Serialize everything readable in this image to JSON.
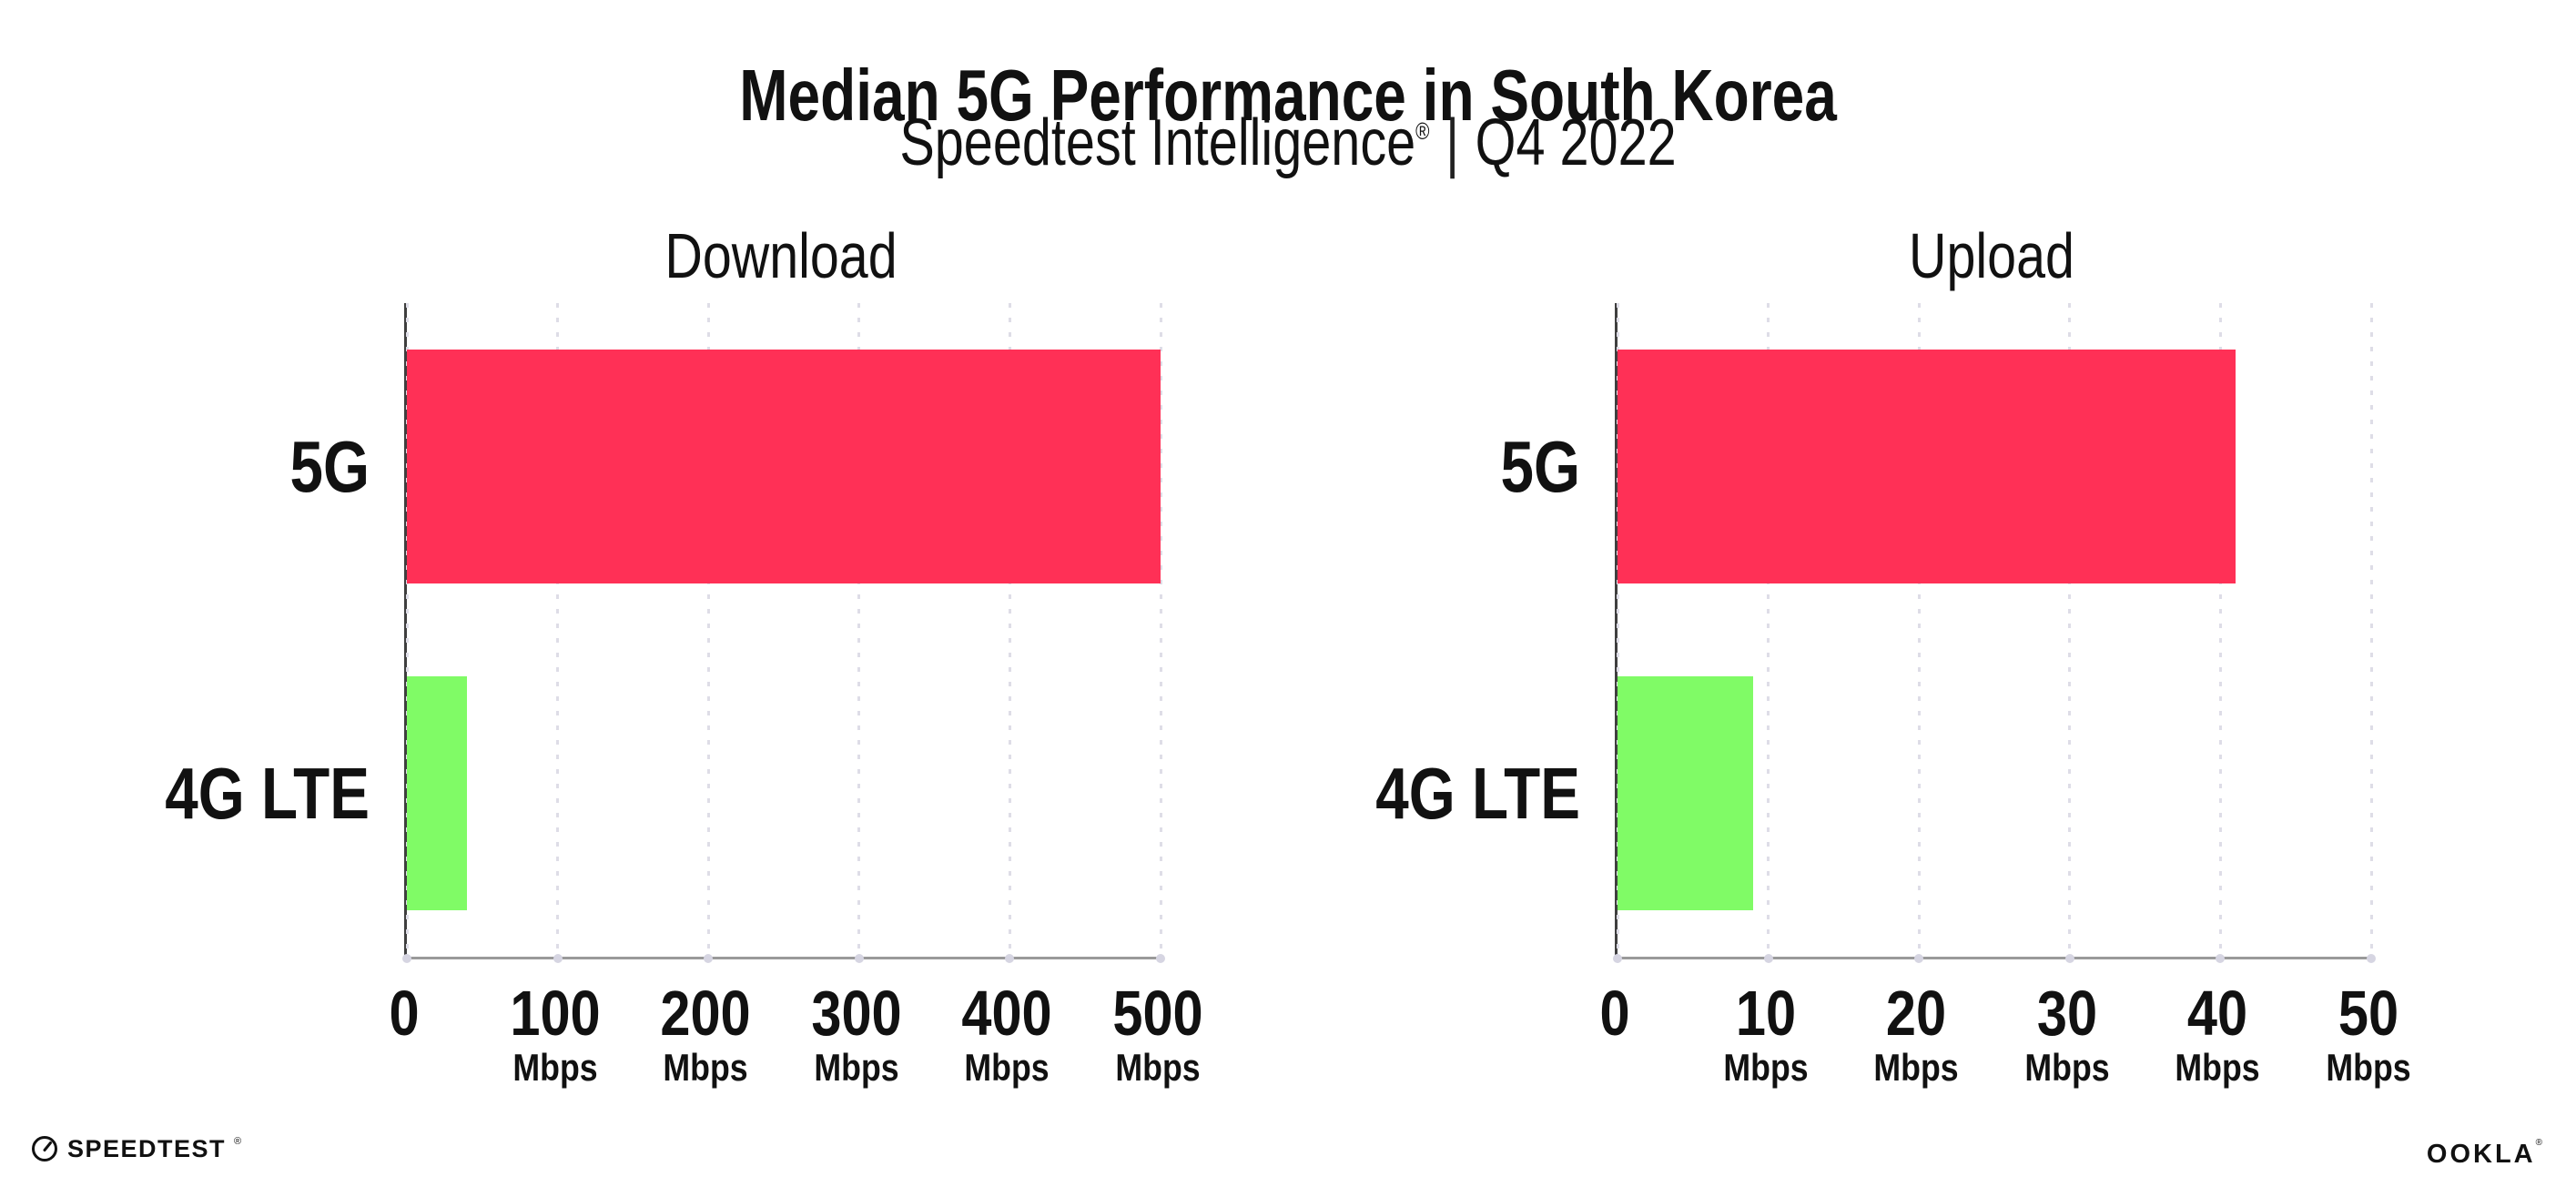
{
  "header": {
    "title": "Median 5G Performance in South Korea",
    "subtitle": {
      "brand": "Speedtest Intelligence",
      "reg_mark": "®",
      "separator": "|",
      "period": "Q4 2022"
    }
  },
  "chart_data": [
    {
      "type": "bar",
      "orientation": "horizontal",
      "title": "Download",
      "categories": [
        "5G",
        "4G LTE"
      ],
      "values": [
        500,
        40
      ],
      "unit": "Mbps",
      "xlim": [
        0,
        500
      ],
      "xticks": [
        0,
        100,
        200,
        300,
        400,
        500
      ],
      "xtick_unit": "Mbps",
      "bar_colors": [
        "#FF3056",
        "#80FB66"
      ],
      "grid": "vertical-dotted",
      "legend": "none"
    },
    {
      "type": "bar",
      "orientation": "horizontal",
      "title": "Upload",
      "categories": [
        "5G",
        "4G LTE"
      ],
      "values": [
        41,
        9
      ],
      "unit": "Mbps",
      "xlim": [
        0,
        50
      ],
      "xticks": [
        0,
        10,
        20,
        30,
        40,
        50
      ],
      "xtick_unit": "Mbps",
      "bar_colors": [
        "#FF3056",
        "#80FB66"
      ],
      "grid": "vertical-dotted",
      "legend": "none"
    }
  ],
  "footer": {
    "speedtest": {
      "label": "SPEEDTEST",
      "reg_mark": "®"
    },
    "ookla": {
      "label": "OOKLA",
      "reg_mark": "®"
    }
  },
  "colors": {
    "bar_5g": "#FF3056",
    "bar_4g_lte": "#80FB66",
    "gridline": "#DEDDE7",
    "axis_tick_dot": "#D6D5E2",
    "axis_left_spine": "#3F3F3F",
    "axis_bottom_spine": "#9A9A9A",
    "text": "#111111",
    "background": "#FFFFFF"
  }
}
